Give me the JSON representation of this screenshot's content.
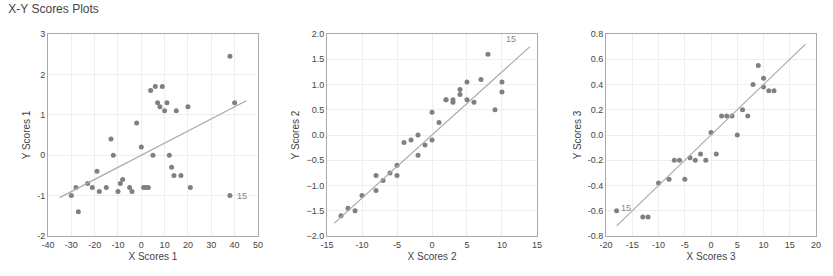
{
  "chart_data": [
    {
      "type": "scatter",
      "title": "X-Y Scores Plots",
      "xlabel": "X Scores 1",
      "ylabel": "Y Scores 1",
      "xlim": [
        -40,
        50
      ],
      "ylim": [
        -2,
        3
      ],
      "xticks": [
        -40,
        -30,
        -20,
        -10,
        0,
        10,
        20,
        30,
        40,
        50
      ],
      "yticks": [
        -2,
        -1,
        0,
        1,
        2,
        3
      ],
      "series": [
        {
          "type": "scatter",
          "marker": "circle",
          "color": "#808080",
          "x": [
            -30,
            -28,
            -27,
            -23,
            -21,
            -19,
            -18,
            -15,
            -13,
            -12,
            -10,
            -9,
            -8,
            -5,
            -4,
            -2,
            0,
            1,
            2,
            3,
            4,
            5,
            6,
            7,
            8,
            9,
            10,
            11,
            12,
            13,
            14,
            15,
            17,
            20,
            21,
            38,
            38,
            40
          ],
          "values": [
            -1.0,
            -0.8,
            -1.4,
            -0.7,
            -0.8,
            -0.4,
            -0.9,
            -0.8,
            0.4,
            0.0,
            -0.9,
            -0.7,
            -0.6,
            -0.8,
            -0.9,
            0.8,
            0.2,
            -0.8,
            -0.8,
            -0.8,
            1.6,
            0.0,
            1.7,
            1.3,
            1.2,
            1.7,
            1.1,
            1.3,
            0.0,
            -0.3,
            -0.5,
            1.1,
            -0.5,
            1.2,
            -0.8,
            -1.0,
            2.45,
            1.3
          ]
        },
        {
          "type": "line",
          "line_style": "solid",
          "color": "#aaaaaa",
          "x": [
            -35,
            45
          ],
          "values": [
            -1.05,
            1.35
          ]
        }
      ],
      "annotations": [
        {
          "text": "15",
          "x": 40,
          "y": -1.0,
          "color": "#888888"
        }
      ]
    },
    {
      "type": "scatter",
      "xlabel": "X Scores 2",
      "ylabel": "Y Scores 2",
      "xlim": [
        -15,
        15
      ],
      "ylim": [
        -2.0,
        2.0
      ],
      "xticks": [
        -15,
        -10,
        -5,
        0,
        5,
        10,
        15
      ],
      "yticks": [
        {
          "value": -2.0,
          "label": "−2.0"
        },
        {
          "value": -1.5,
          "label": "−1.5"
        },
        {
          "value": -1.0,
          "label": "−1.0"
        },
        {
          "value": -0.5,
          "label": "−0.5"
        },
        {
          "value": 0.0,
          "label": "0.0"
        },
        {
          "value": 0.5,
          "label": "0.5"
        },
        {
          "value": 1.0,
          "label": "1.0"
        },
        {
          "value": 1.5,
          "label": "1.5"
        },
        {
          "value": 2.0,
          "label": "2.0"
        }
      ],
      "series": [
        {
          "type": "scatter",
          "marker": "circle",
          "color": "#808080",
          "x": [
            -13,
            -12,
            -11,
            -10,
            -8,
            -8,
            -7,
            -6,
            -5,
            -5,
            -4,
            -3,
            -2,
            -2,
            -1,
            0,
            0,
            1,
            2,
            2,
            3,
            3,
            4,
            4,
            5,
            5,
            6,
            7,
            8,
            9,
            10,
            10
          ],
          "values": [
            -1.6,
            -1.45,
            -1.5,
            -1.2,
            -1.1,
            -0.8,
            -0.9,
            -0.75,
            -0.8,
            -0.6,
            -0.15,
            -0.1,
            0.0,
            -0.4,
            -0.2,
            0.45,
            -0.1,
            0.25,
            0.7,
            0.7,
            0.7,
            0.65,
            0.9,
            0.8,
            0.7,
            1.05,
            0.65,
            1.1,
            1.6,
            0.5,
            1.05,
            0.85
          ]
        },
        {
          "type": "line",
          "line_style": "solid",
          "color": "#aaaaaa",
          "x": [
            -14,
            14
          ],
          "values": [
            -1.75,
            1.75
          ]
        }
      ],
      "annotations": [
        {
          "text": "15",
          "x": 10.3,
          "y": 1.9,
          "color": "#888888"
        }
      ]
    },
    {
      "type": "scatter",
      "xlabel": "X Scores 3",
      "ylabel": "Y Scores 3",
      "xlim": [
        -20,
        20
      ],
      "ylim": [
        -0.8,
        0.8
      ],
      "xticks": [
        -20,
        -15,
        -10,
        -5,
        0,
        5,
        10,
        15,
        20
      ],
      "yticks": [
        -0.8,
        -0.6,
        -0.4,
        -0.2,
        {
          "value": 0.0,
          "label": "0.0"
        },
        0.2,
        0.4,
        0.6,
        0.8
      ],
      "series": [
        {
          "type": "scatter",
          "marker": "circle",
          "color": "#808080",
          "x": [
            -18,
            -13,
            -12,
            -10,
            -8,
            -7,
            -6,
            -5,
            -4,
            -3,
            -2,
            -1,
            0,
            1,
            2,
            3,
            4,
            5,
            6,
            7,
            8,
            9,
            10,
            10,
            11,
            12
          ],
          "values": [
            -0.6,
            -0.65,
            -0.65,
            -0.38,
            -0.35,
            -0.2,
            -0.2,
            -0.35,
            -0.18,
            -0.2,
            -0.15,
            -0.2,
            0.02,
            -0.15,
            0.15,
            0.15,
            0.15,
            0.0,
            0.2,
            0.15,
            0.4,
            0.55,
            0.45,
            0.38,
            0.35,
            0.35
          ]
        },
        {
          "type": "line",
          "line_style": "solid",
          "color": "#aaaaaa",
          "x": [
            -18,
            18
          ],
          "values": [
            -0.72,
            0.72
          ]
        }
      ],
      "annotations": [
        {
          "text": "15",
          "x": -17.5,
          "y": -0.58,
          "color": "#888888"
        }
      ]
    }
  ]
}
